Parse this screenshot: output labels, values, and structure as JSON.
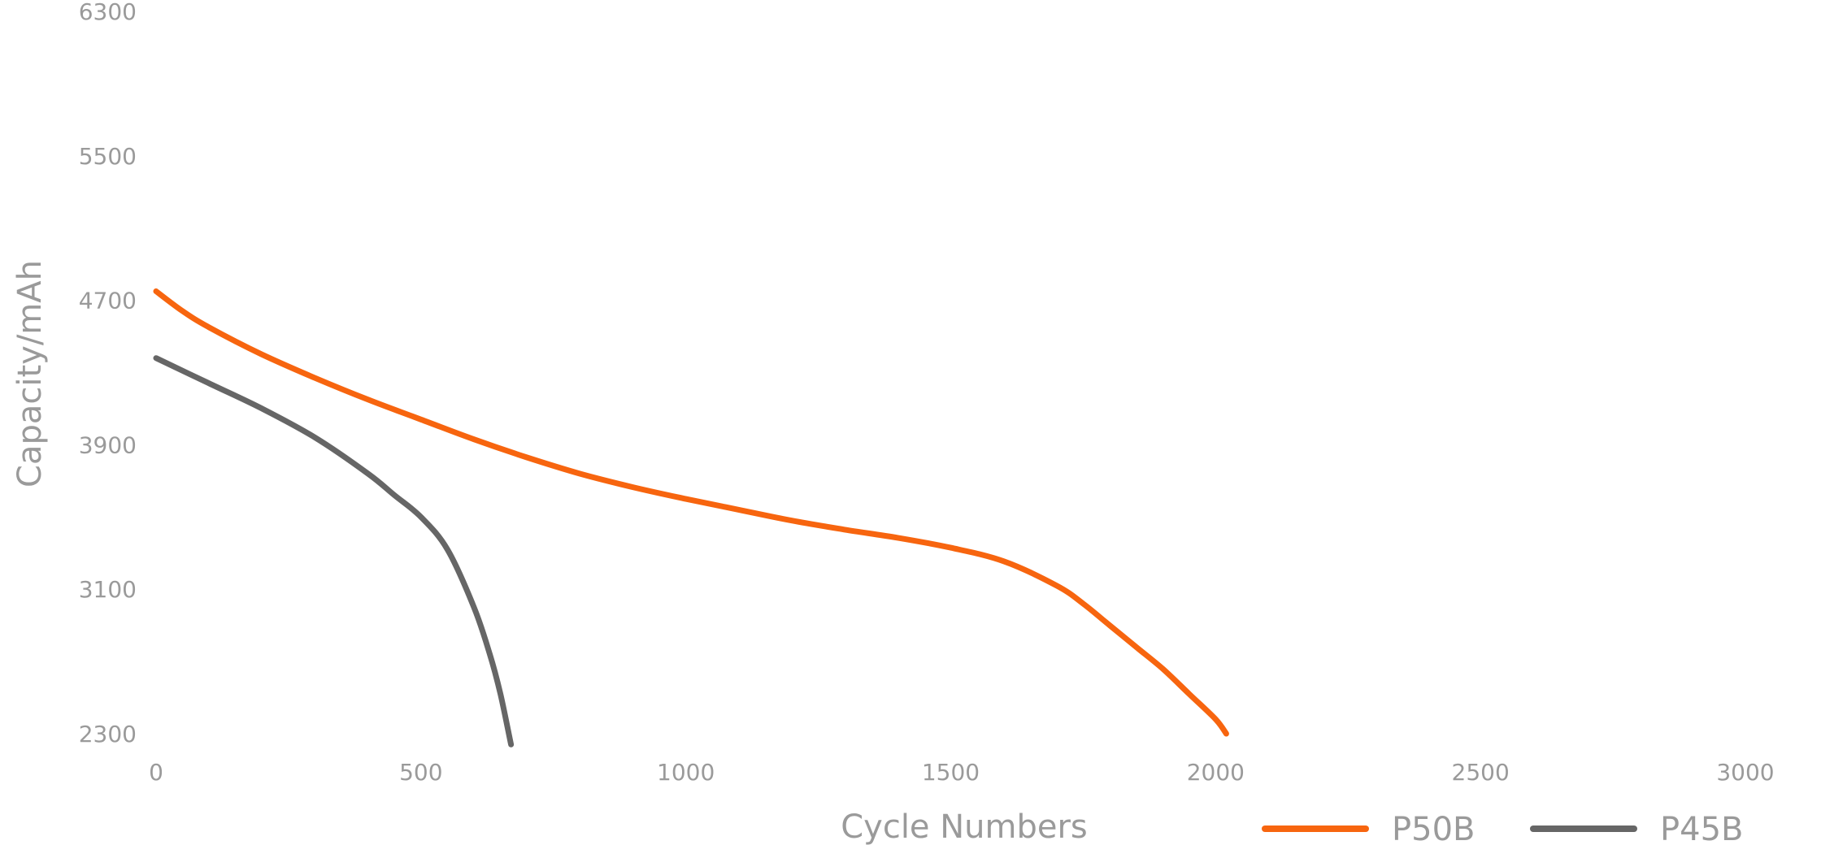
{
  "chart_data": {
    "type": "line",
    "xlabel": "Cycle Numbers",
    "ylabel": "Capacity/mAh",
    "xlim": [
      0,
      3000
    ],
    "ylim": [
      2300,
      6300
    ],
    "x_ticks": [
      0,
      500,
      1000,
      1500,
      2000,
      2500,
      3000
    ],
    "y_ticks": [
      2300,
      3100,
      3900,
      4700,
      5500,
      6300
    ],
    "grid": false,
    "legend_position": "bottom-right",
    "series": [
      {
        "name": "P50B",
        "color": "#f7650f",
        "x": [
          0,
          50,
          100,
          200,
          300,
          400,
          500,
          600,
          700,
          800,
          900,
          1000,
          1100,
          1200,
          1300,
          1400,
          1500,
          1600,
          1700,
          1750,
          1800,
          1850,
          1900,
          1950,
          2000,
          2020
        ],
        "y": [
          4750,
          4640,
          4550,
          4400,
          4270,
          4150,
          4040,
          3930,
          3830,
          3740,
          3665,
          3600,
          3540,
          3480,
          3430,
          3385,
          3330,
          3255,
          3120,
          3020,
          2900,
          2780,
          2660,
          2520,
          2380,
          2300
        ]
      },
      {
        "name": "P45B",
        "color": "#666666",
        "x": [
          0,
          100,
          200,
          300,
          400,
          450,
          500,
          550,
          600,
          630,
          650,
          670
        ],
        "y": [
          4380,
          4240,
          4100,
          3940,
          3740,
          3620,
          3500,
          3320,
          3000,
          2740,
          2520,
          2240
        ]
      }
    ]
  }
}
